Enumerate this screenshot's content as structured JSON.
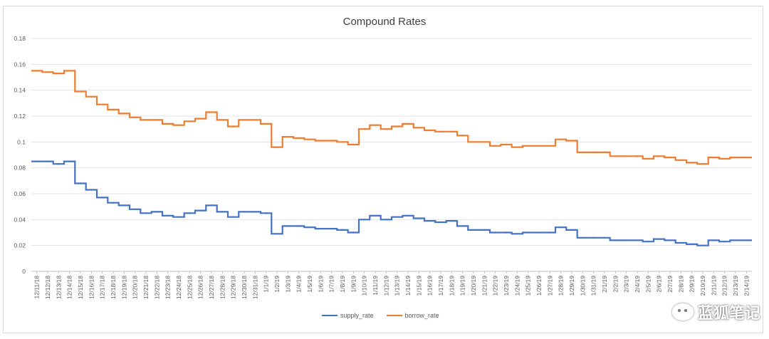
{
  "chart_data": {
    "type": "line",
    "title": "Compound Rates",
    "xlabel": "",
    "ylabel": "",
    "ylim": [
      0,
      0.18
    ],
    "yticks": [
      "0",
      "0.02",
      "0.04",
      "0.06",
      "0.08",
      "0.1",
      "0.12",
      "0.14",
      "0.16",
      "0.18"
    ],
    "grid": true,
    "legend_position": "bottom",
    "categories": [
      "12/11/18",
      "12/12/18",
      "12/13/18",
      "12/14/18",
      "12/15/18",
      "12/16/18",
      "12/17/18",
      "12/18/18",
      "12/19/18",
      "12/20/18",
      "12/21/18",
      "12/22/18",
      "12/23/18",
      "12/24/18",
      "12/25/18",
      "12/26/18",
      "12/27/18",
      "12/28/18",
      "12/29/18",
      "12/30/18",
      "12/31/18",
      "1/1/19",
      "1/2/19",
      "1/3/19",
      "1/4/19",
      "1/5/19",
      "1/6/19",
      "1/7/19",
      "1/8/19",
      "1/9/19",
      "1/10/19",
      "1/11/19",
      "1/12/19",
      "1/13/19",
      "1/14/19",
      "1/15/19",
      "1/16/19",
      "1/17/19",
      "1/18/19",
      "1/19/19",
      "1/20/19",
      "1/21/19",
      "1/22/19",
      "1/23/19",
      "1/24/19",
      "1/25/19",
      "1/26/19",
      "1/27/19",
      "1/28/19",
      "1/29/19",
      "1/30/19",
      "1/31/19",
      "2/1/19",
      "2/2/19",
      "2/3/19",
      "2/4/19",
      "2/5/19",
      "2/6/19",
      "2/7/19",
      "2/8/19",
      "2/9/19",
      "2/10/19",
      "2/11/19",
      "2/12/19",
      "2/13/19",
      "2/14/19"
    ],
    "series": [
      {
        "name": "supply_rate",
        "color": "#4472c4",
        "values": [
          0.085,
          0.085,
          0.083,
          0.085,
          0.068,
          0.063,
          0.057,
          0.053,
          0.051,
          0.048,
          0.045,
          0.046,
          0.043,
          0.042,
          0.045,
          0.047,
          0.051,
          0.046,
          0.042,
          0.046,
          0.046,
          0.045,
          0.029,
          0.035,
          0.035,
          0.034,
          0.033,
          0.033,
          0.032,
          0.03,
          0.04,
          0.043,
          0.04,
          0.042,
          0.043,
          0.041,
          0.039,
          0.038,
          0.039,
          0.035,
          0.032,
          0.032,
          0.03,
          0.03,
          0.029,
          0.03,
          0.03,
          0.03,
          0.034,
          0.032,
          0.026,
          0.026,
          0.026,
          0.024,
          0.024,
          0.024,
          0.023,
          0.025,
          0.024,
          0.022,
          0.021,
          0.02,
          0.024,
          0.023,
          0.024,
          0.024
        ]
      },
      {
        "name": "borrow_rate",
        "color": "#ed7d31",
        "values": [
          0.155,
          0.154,
          0.153,
          0.155,
          0.139,
          0.135,
          0.129,
          0.125,
          0.122,
          0.119,
          0.117,
          0.117,
          0.114,
          0.113,
          0.116,
          0.118,
          0.123,
          0.117,
          0.112,
          0.117,
          0.117,
          0.114,
          0.096,
          0.104,
          0.103,
          0.102,
          0.101,
          0.101,
          0.1,
          0.098,
          0.11,
          0.113,
          0.11,
          0.112,
          0.114,
          0.111,
          0.109,
          0.108,
          0.108,
          0.105,
          0.1,
          0.1,
          0.097,
          0.098,
          0.096,
          0.097,
          0.097,
          0.097,
          0.102,
          0.101,
          0.092,
          0.092,
          0.092,
          0.089,
          0.089,
          0.089,
          0.087,
          0.089,
          0.088,
          0.086,
          0.084,
          0.083,
          0.088,
          0.087,
          0.088,
          0.088
        ]
      }
    ]
  },
  "watermark": {
    "text": "蓝狐笔记",
    "icon": "wechat-icon"
  }
}
